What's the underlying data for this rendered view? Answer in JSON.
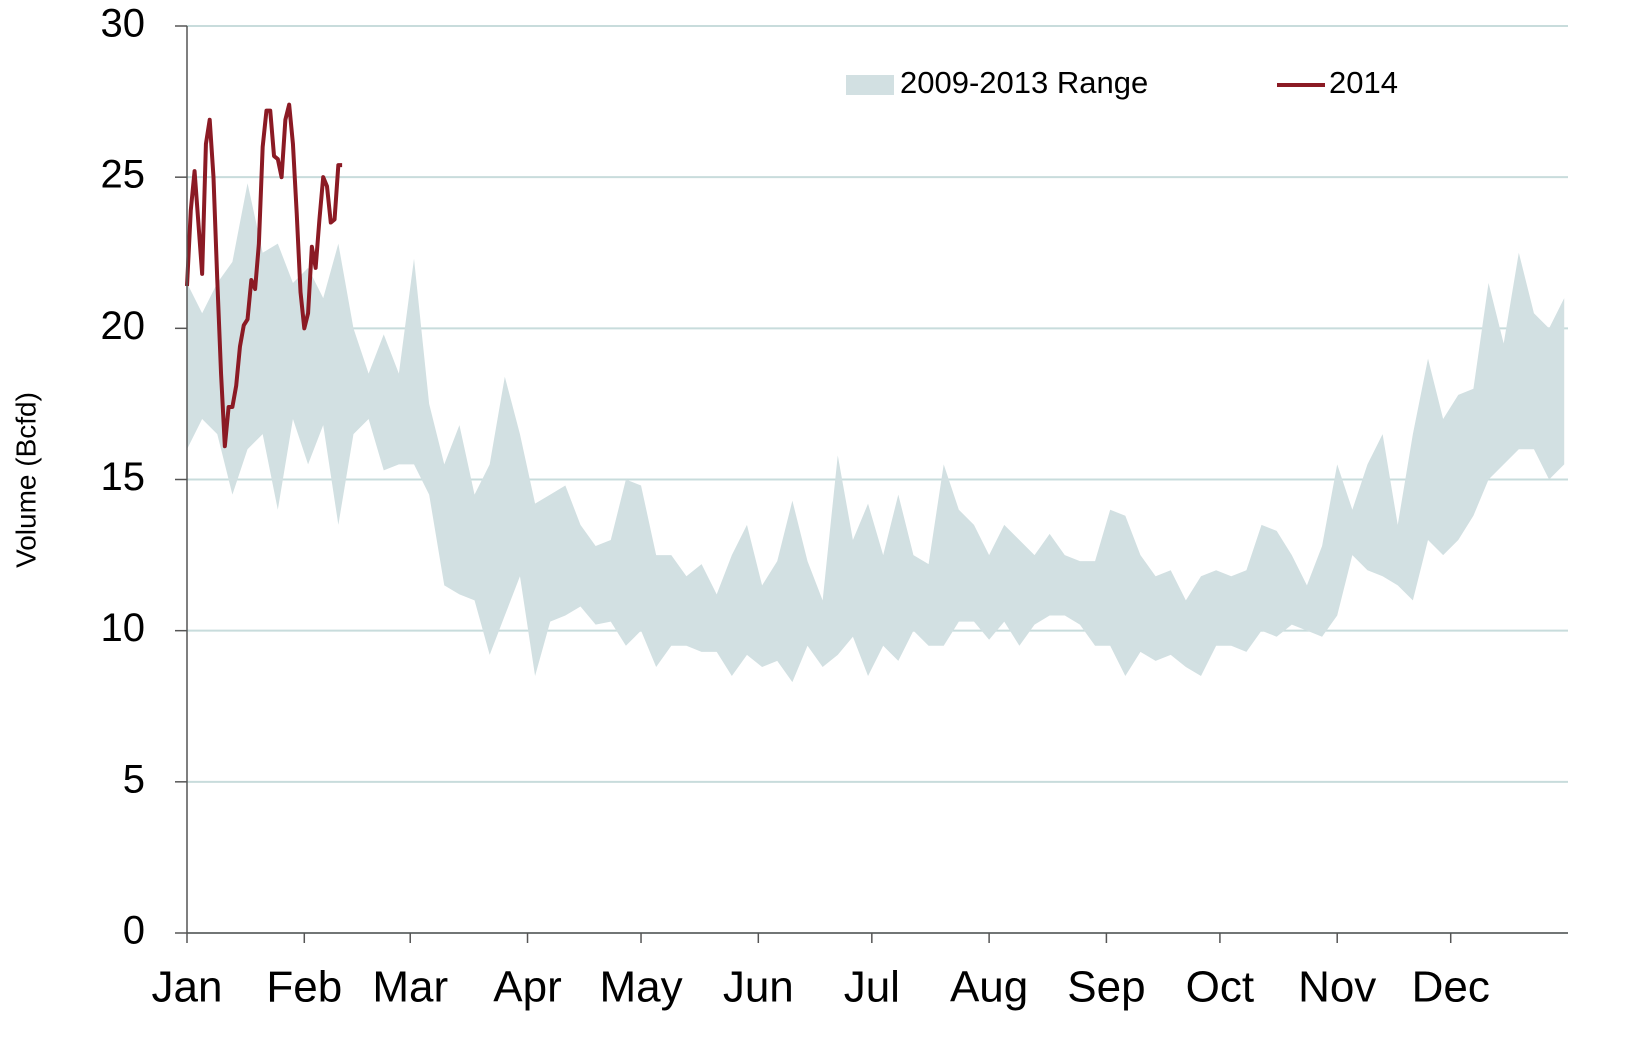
{
  "chart_data": {
    "type": "line",
    "y_label": "Volume (Bcfd)",
    "xlim": [
      1,
      366
    ],
    "ylim": [
      0,
      30
    ],
    "yticks": [
      0,
      5,
      10,
      15,
      20,
      25,
      30
    ],
    "xticks": [
      {
        "value": 1,
        "label": "Jan"
      },
      {
        "value": 32,
        "label": "Feb"
      },
      {
        "value": 60,
        "label": "Mar"
      },
      {
        "value": 91,
        "label": "Apr"
      },
      {
        "value": 121,
        "label": "May"
      },
      {
        "value": 152,
        "label": "Jun"
      },
      {
        "value": 182,
        "label": "Jul"
      },
      {
        "value": 213,
        "label": "Aug"
      },
      {
        "value": 244,
        "label": "Sep"
      },
      {
        "value": 274,
        "label": "Oct"
      },
      {
        "value": 305,
        "label": "Nov"
      },
      {
        "value": 335,
        "label": "Dec"
      }
    ],
    "grid": true,
    "legend": "top-right",
    "series": [
      {
        "name": "2009-2013 Range",
        "type": "range",
        "color": "#d2e0e2",
        "x": [
          1,
          5,
          9,
          13,
          17,
          21,
          25,
          29,
          33,
          37,
          41,
          45,
          49,
          53,
          57,
          61,
          65,
          69,
          73,
          77,
          81,
          85,
          89,
          93,
          97,
          101,
          105,
          109,
          113,
          117,
          121,
          125,
          129,
          133,
          137,
          141,
          145,
          149,
          153,
          157,
          161,
          165,
          169,
          173,
          177,
          181,
          185,
          189,
          193,
          197,
          201,
          205,
          209,
          213,
          217,
          221,
          225,
          229,
          233,
          237,
          241,
          245,
          249,
          253,
          257,
          261,
          265,
          269,
          273,
          277,
          281,
          285,
          289,
          293,
          297,
          301,
          305,
          309,
          313,
          317,
          321,
          325,
          329,
          333,
          337,
          341,
          345,
          349,
          353,
          357,
          361,
          365
        ],
        "high": [
          21.5,
          20.5,
          21.5,
          22.2,
          24.8,
          22.5,
          22.8,
          21.5,
          22,
          21,
          22.8,
          20,
          18.5,
          19.8,
          18.5,
          22.3,
          17.5,
          15.5,
          16.8,
          14.5,
          15.5,
          18.4,
          16.5,
          14.2,
          14.5,
          14.8,
          13.5,
          12.8,
          13,
          15,
          14.8,
          12.5,
          12.5,
          11.8,
          12.2,
          11.2,
          12.5,
          13.5,
          11.5,
          12.3,
          14.3,
          12.3,
          11,
          15.8,
          13,
          14.2,
          12.5,
          14.5,
          12.5,
          12.2,
          15.5,
          14,
          13.5,
          12.5,
          13.5,
          13,
          12.5,
          13.2,
          12.5,
          12.3,
          12.3,
          14,
          13.8,
          12.5,
          11.8,
          12,
          11,
          11.8,
          12,
          11.8,
          12,
          13.5,
          13.3,
          12.5,
          11.5,
          12.8,
          15.5,
          14,
          15.5,
          16.5,
          13.5,
          16.5,
          19,
          17,
          17.8,
          18,
          21.5,
          19.5,
          22.5,
          20.5,
          20,
          21
        ],
        "low": [
          16,
          17,
          16.5,
          14.5,
          16,
          16.5,
          14,
          17,
          15.5,
          16.8,
          13.5,
          16.5,
          17,
          15.3,
          15.5,
          15.5,
          14.5,
          11.5,
          11.2,
          11,
          9.2,
          10.5,
          11.8,
          8.5,
          10.3,
          10.5,
          10.8,
          10.2,
          10.3,
          9.5,
          10,
          8.8,
          9.5,
          9.5,
          9.3,
          9.3,
          8.5,
          9.2,
          8.8,
          9,
          8.3,
          9.5,
          8.8,
          9.2,
          9.8,
          8.5,
          9.5,
          9,
          10,
          9.5,
          9.5,
          10.3,
          10.3,
          9.7,
          10.3,
          9.5,
          10.2,
          10.5,
          10.5,
          10.2,
          9.5,
          9.5,
          8.5,
          9.3,
          9,
          9.2,
          8.8,
          8.5,
          9.5,
          9.5,
          9.3,
          10,
          9.8,
          10.2,
          10,
          9.8,
          10.5,
          12.5,
          12,
          11.8,
          11.5,
          11,
          13,
          12.5,
          13,
          13.8,
          15,
          15.5,
          16,
          16,
          15,
          15.5
        ]
      },
      {
        "name": "2014",
        "type": "line",
        "color": "#8b1a24",
        "x": [
          1,
          2,
          3,
          4,
          5,
          6,
          7,
          8,
          9,
          10,
          11,
          12,
          13,
          14,
          15,
          16,
          17,
          18,
          19,
          20,
          21,
          22,
          23,
          24,
          25,
          26,
          27,
          28,
          29,
          30,
          31,
          32,
          33,
          34,
          35,
          36,
          37,
          38,
          39,
          40,
          41,
          42
        ],
        "values": [
          21.4,
          23.9,
          25.2,
          23.5,
          21.8,
          26.1,
          26.9,
          25,
          21.6,
          18.5,
          16.1,
          17.4,
          17.4,
          18.1,
          19.4,
          20.1,
          20.3,
          21.6,
          21.3,
          22.8,
          26,
          27.2,
          27.2,
          25.7,
          25.6,
          25,
          26.9,
          27.4,
          26.1,
          23.8,
          21.2,
          20,
          20.5,
          22.7,
          22,
          23.6,
          25,
          24.7,
          23.5,
          23.6,
          25.4,
          25.4
        ]
      }
    ]
  }
}
